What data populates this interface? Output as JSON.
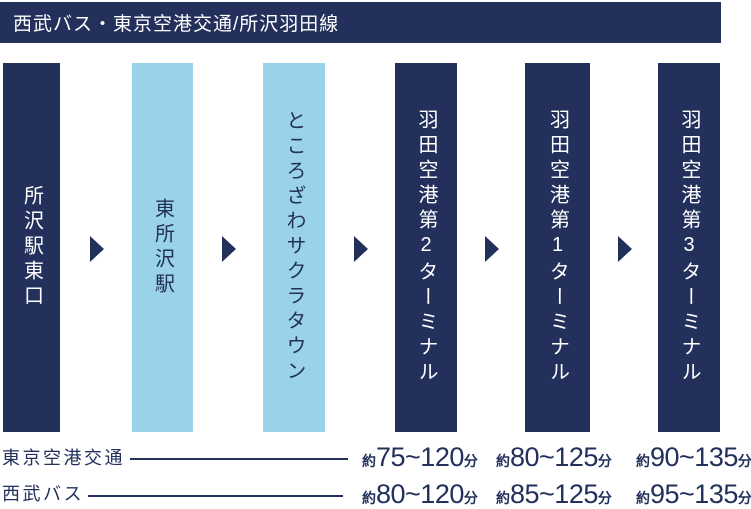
{
  "title_bar": {
    "title": "西武バス・東京空港交通/所沢羽田線"
  },
  "colors": {
    "navy": "#22305B",
    "light_blue": "#9AD3E9",
    "text_on_navy": "#FFFFFF"
  },
  "stops": [
    {
      "name": "所沢駅東口",
      "theme": "navy"
    },
    {
      "name": "東所沢駅",
      "theme": "light"
    },
    {
      "name": "ところざわサクラタウン",
      "theme": "light"
    },
    {
      "name": "羽田空港第2ターミナル",
      "theme": "navy"
    },
    {
      "name": "羽田空港第1ターミナル",
      "theme": "navy"
    },
    {
      "name": "羽田空港第3ターミナル",
      "theme": "navy"
    }
  ],
  "duration_rows": [
    {
      "operator": "東京空港交通",
      "times": [
        {
          "approx": "約",
          "range": "75~120",
          "unit": "分"
        },
        {
          "approx": "約",
          "range": "80~125",
          "unit": "分"
        },
        {
          "approx": "約",
          "range": "90~135",
          "unit": "分"
        }
      ]
    },
    {
      "operator": "西武バス",
      "times": [
        {
          "approx": "約",
          "range": "80~120",
          "unit": "分"
        },
        {
          "approx": "約",
          "range": "85~125",
          "unit": "分"
        },
        {
          "approx": "約",
          "range": "95~135",
          "unit": "分"
        }
      ]
    }
  ]
}
